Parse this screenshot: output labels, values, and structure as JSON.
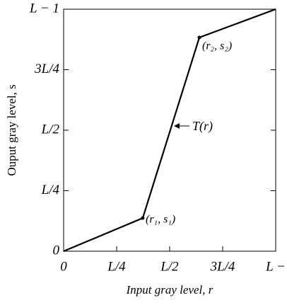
{
  "chart_data": {
    "type": "line",
    "xlabel": "Input gray level, r",
    "ylabel": "Ouput gray level, s",
    "x": [
      0,
      0.373,
      0.64,
      1
    ],
    "values": [
      0,
      0.137,
      0.883,
      1
    ],
    "color": "#000000",
    "xlim": [
      0,
      1
    ],
    "ylim": [
      0,
      1
    ],
    "xticks": [
      0,
      {
        "value": 0.25,
        "label": "L/4"
      },
      {
        "value": 0.5,
        "label": "L/2"
      },
      {
        "value": 0.75,
        "label": "3L/4"
      },
      {
        "value": 1,
        "label": "L −"
      }
    ],
    "yticks": [
      0,
      {
        "value": 0.25,
        "label": "L/4"
      },
      {
        "value": 0.5,
        "label": "L/2"
      },
      {
        "value": 0.75,
        "label": "3L/4"
      },
      {
        "value": 1,
        "label": "L − 1"
      }
    ],
    "annotations": [
      "(r₁, s₁)",
      "(r₂, s₂)",
      "T(r)"
    ]
  }
}
